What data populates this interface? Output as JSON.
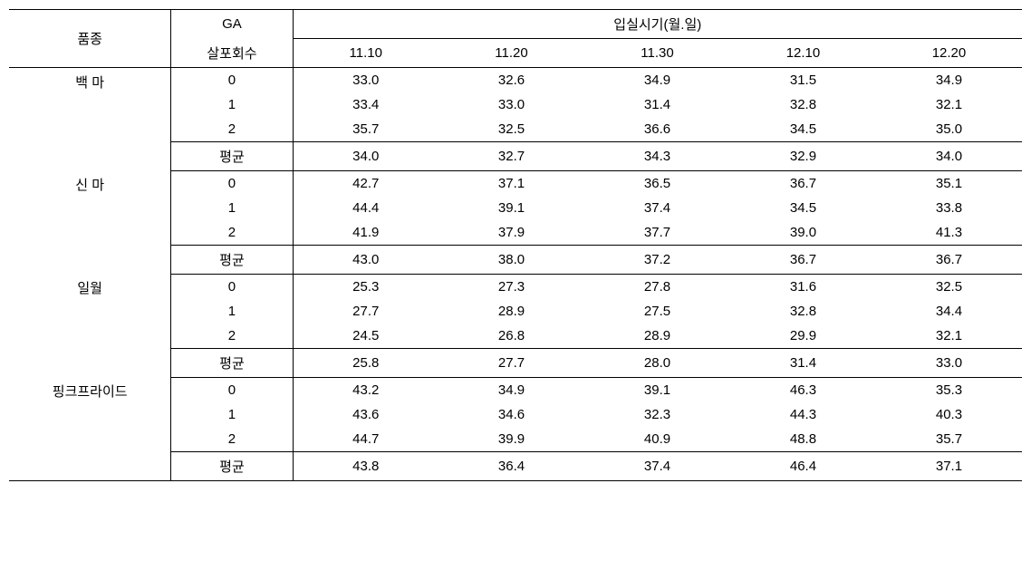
{
  "headers": {
    "col1": "품종",
    "col2_line1": "GA",
    "col2_line2": "살포회수",
    "span_label": "입실시기(월.일)",
    "dates": [
      "11.10",
      "11.20",
      "11.30",
      "12.10",
      "12.20"
    ]
  },
  "avg_label": "평균",
  "groups": [
    {
      "name_parts": [
        "백",
        "마"
      ],
      "name_spaced": "백 마",
      "rows": [
        {
          "ga": "0",
          "v": [
            "33.0",
            "32.6",
            "34.9",
            "31.5",
            "34.9"
          ]
        },
        {
          "ga": "1",
          "v": [
            "33.4",
            "33.0",
            "31.4",
            "32.8",
            "32.1"
          ]
        },
        {
          "ga": "2",
          "v": [
            "35.7",
            "32.5",
            "36.6",
            "34.5",
            "35.0"
          ]
        }
      ],
      "avg": [
        "34.0",
        "32.7",
        "34.3",
        "32.9",
        "34.0"
      ]
    },
    {
      "name_parts": [
        "신",
        "마"
      ],
      "name_spaced": "신 마",
      "rows": [
        {
          "ga": "0",
          "v": [
            "42.7",
            "37.1",
            "36.5",
            "36.7",
            "35.1"
          ]
        },
        {
          "ga": "1",
          "v": [
            "44.4",
            "39.1",
            "37.4",
            "34.5",
            "33.8"
          ]
        },
        {
          "ga": "2",
          "v": [
            "41.9",
            "37.9",
            "37.7",
            "39.0",
            "41.3"
          ]
        }
      ],
      "avg": [
        "43.0",
        "38.0",
        "37.2",
        "36.7",
        "36.7"
      ]
    },
    {
      "name_parts": [
        "일월"
      ],
      "name_spaced": "일월",
      "rows": [
        {
          "ga": "0",
          "v": [
            "25.3",
            "27.3",
            "27.8",
            "31.6",
            "32.5"
          ]
        },
        {
          "ga": "1",
          "v": [
            "27.7",
            "28.9",
            "27.5",
            "32.8",
            "34.4"
          ]
        },
        {
          "ga": "2",
          "v": [
            "24.5",
            "26.8",
            "28.9",
            "29.9",
            "32.1"
          ]
        }
      ],
      "avg": [
        "25.8",
        "27.7",
        "28.0",
        "31.4",
        "33.0"
      ]
    },
    {
      "name_parts": [
        "핑크프라이드"
      ],
      "name_spaced": "핑크프라이드",
      "rows": [
        {
          "ga": "0",
          "v": [
            "43.2",
            "34.9",
            "39.1",
            "46.3",
            "35.3"
          ]
        },
        {
          "ga": "1",
          "v": [
            "43.6",
            "34.6",
            "32.3",
            "44.3",
            "40.3"
          ]
        },
        {
          "ga": "2",
          "v": [
            "44.7",
            "39.9",
            "40.9",
            "48.8",
            "35.7"
          ]
        }
      ],
      "avg": [
        "43.8",
        "36.4",
        "37.4",
        "46.4",
        "37.1"
      ]
    }
  ],
  "style": {
    "font_size": 15,
    "font_family": "Malgun Gothic",
    "text_color": "#000000",
    "bg_color": "#ffffff",
    "border_color": "#000000"
  }
}
